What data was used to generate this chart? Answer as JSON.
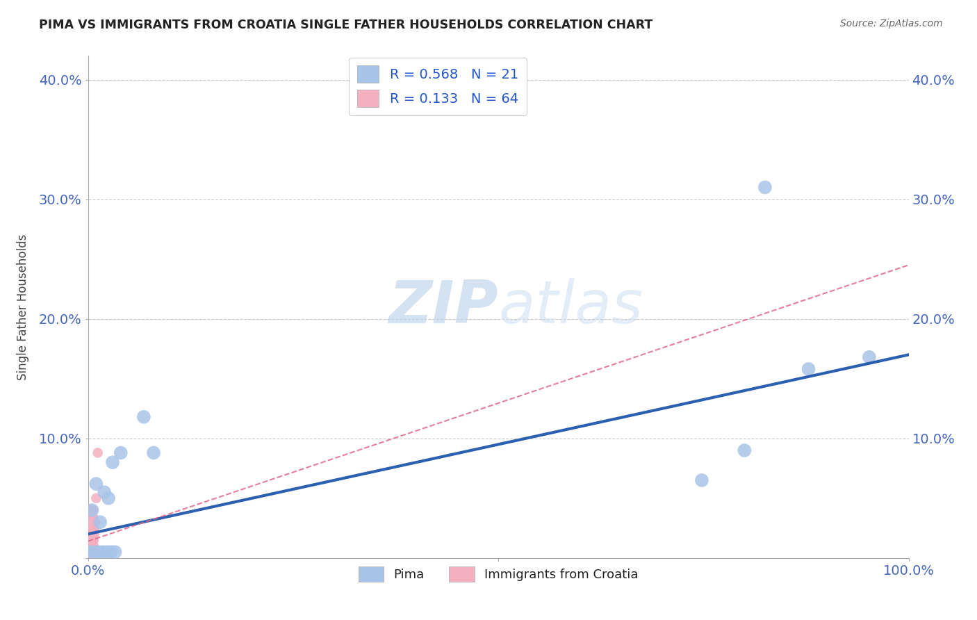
{
  "title": "PIMA VS IMMIGRANTS FROM CROATIA SINGLE FATHER HOUSEHOLDS CORRELATION CHART",
  "source": "Source: ZipAtlas.com",
  "ylabel": "Single Father Households",
  "xlim": [
    0.0,
    1.0
  ],
  "ylim": [
    0.0,
    0.42
  ],
  "pima_R": 0.568,
  "pima_N": 21,
  "croatia_R": 0.133,
  "croatia_N": 64,
  "pima_scatter_color": "#a8c4e8",
  "pima_line_color": "#2b60b0",
  "croatia_scatter_color": "#f4afc0",
  "croatia_line_color": "#e06888",
  "grid_color": "#c8c8c8",
  "watermark_color": "#ccddf0",
  "pima_x": [
    0.003,
    0.005,
    0.008,
    0.01,
    0.013,
    0.015,
    0.018,
    0.02,
    0.023,
    0.025,
    0.028,
    0.03,
    0.033,
    0.04,
    0.068,
    0.08,
    0.748,
    0.8,
    0.825,
    0.878,
    0.952
  ],
  "pima_y": [
    0.005,
    0.04,
    0.005,
    0.062,
    0.005,
    0.03,
    0.005,
    0.055,
    0.005,
    0.05,
    0.005,
    0.08,
    0.005,
    0.088,
    0.118,
    0.088,
    0.065,
    0.09,
    0.31,
    0.158,
    0.168
  ],
  "croatia_x": [
    0.001,
    0.001,
    0.001,
    0.001,
    0.001,
    0.001,
    0.001,
    0.001,
    0.002,
    0.002,
    0.002,
    0.002,
    0.002,
    0.002,
    0.002,
    0.002,
    0.003,
    0.003,
    0.003,
    0.003,
    0.003,
    0.003,
    0.003,
    0.003,
    0.004,
    0.004,
    0.004,
    0.004,
    0.004,
    0.004,
    0.004,
    0.004,
    0.005,
    0.005,
    0.005,
    0.005,
    0.005,
    0.005,
    0.005,
    0.005,
    0.005,
    0.005,
    0.005,
    0.005,
    0.005,
    0.005,
    0.005,
    0.005,
    0.006,
    0.006,
    0.006,
    0.006,
    0.006,
    0.006,
    0.006,
    0.006,
    0.007,
    0.007,
    0.007,
    0.008,
    0.008,
    0.009,
    0.01,
    0.012
  ],
  "croatia_y": [
    0.005,
    0.01,
    0.015,
    0.02,
    0.025,
    0.03,
    0.035,
    0.04,
    0.005,
    0.01,
    0.015,
    0.02,
    0.025,
    0.03,
    0.035,
    0.04,
    0.005,
    0.01,
    0.015,
    0.02,
    0.025,
    0.03,
    0.035,
    0.04,
    0.005,
    0.01,
    0.015,
    0.02,
    0.025,
    0.03,
    0.035,
    0.04,
    0.005,
    0.01,
    0.015,
    0.02,
    0.025,
    0.03,
    0.035,
    0.04,
    0.005,
    0.01,
    0.015,
    0.02,
    0.025,
    0.03,
    0.035,
    0.04,
    0.005,
    0.01,
    0.015,
    0.02,
    0.025,
    0.03,
    0.035,
    0.04,
    0.005,
    0.01,
    0.015,
    0.02,
    0.025,
    0.03,
    0.05,
    0.088
  ],
  "pima_line_x0": 0.0,
  "pima_line_y0": 0.02,
  "pima_line_x1": 1.0,
  "pima_line_y1": 0.17,
  "croatia_line_x0": 0.0,
  "croatia_line_y0": 0.014,
  "croatia_line_x1": 1.0,
  "croatia_line_y1": 0.245
}
